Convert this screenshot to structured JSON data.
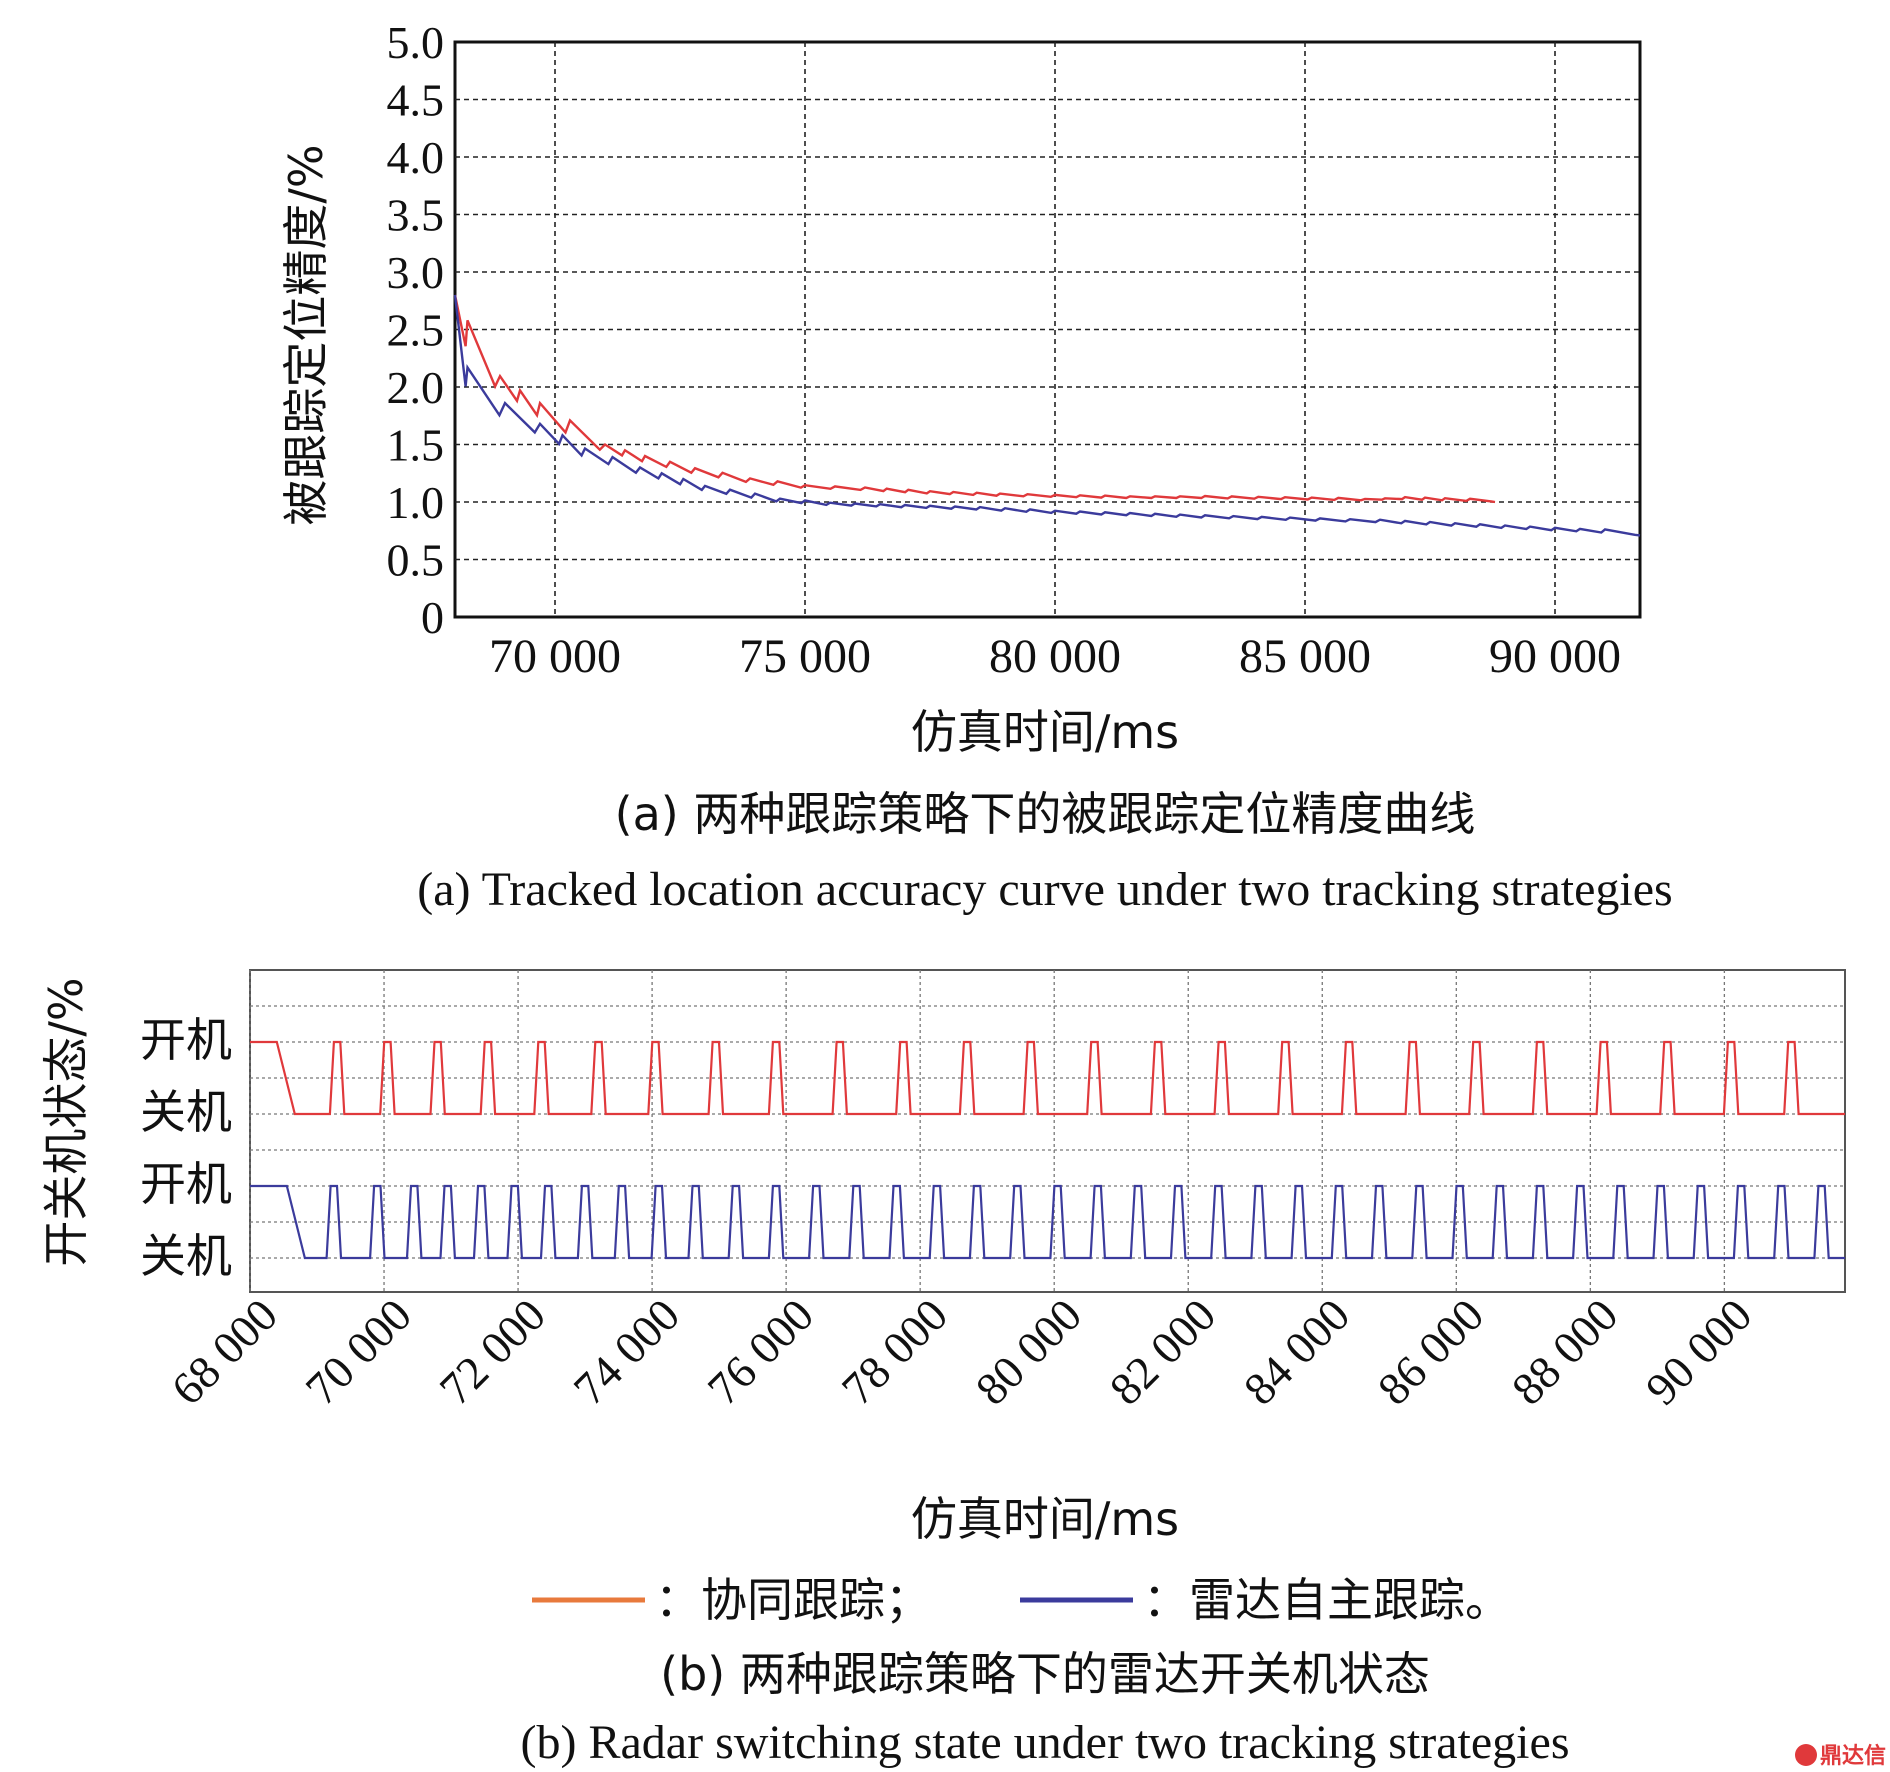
{
  "chart_data": [
    {
      "type": "line",
      "ylabel": "被跟踪定位精度/%",
      "xlabel": "仿真时间/ms",
      "ylim": [
        0,
        5.0
      ],
      "xlim": [
        68000,
        91700
      ],
      "yticks": [
        "0",
        "0.5",
        "1.0",
        "1.5",
        "2.0",
        "2.5",
        "3.0",
        "3.5",
        "4.0",
        "4.5",
        "5.0"
      ],
      "xticks": [
        {
          "value": 70000,
          "label": "70 000"
        },
        {
          "value": 75000,
          "label": "75 000"
        },
        {
          "value": 80000,
          "label": "80 000"
        },
        {
          "value": 85000,
          "label": "85 000"
        },
        {
          "value": 90000,
          "label": "90 000"
        }
      ],
      "grid": true,
      "caption_cn": "(a) 两种跟踪策略下的被跟踪定位精度曲线",
      "caption_en": "(a) Tracked location accuracy curve under two tracking strategies",
      "series": [
        {
          "name": "协同跟踪",
          "color": "#e0393b",
          "x": [
            68000,
            68250,
            68900,
            69700,
            70300,
            71000,
            71800,
            72800,
            73900,
            75000,
            76200,
            77500,
            78900,
            80000,
            81500,
            83000,
            84600,
            86200,
            87000,
            87800,
            88800
          ],
          "y": [
            2.8,
            2.35,
            2.0,
            1.75,
            1.6,
            1.45,
            1.35,
            1.25,
            1.17,
            1.12,
            1.1,
            1.07,
            1.05,
            1.04,
            1.03,
            1.03,
            1.02,
            1.01,
            1.02,
            1.01,
            1.0
          ]
        },
        {
          "name": "雷达自主跟踪",
          "color": "#3b3b9c",
          "x": [
            68000,
            68250,
            69000,
            69700,
            70600,
            71700,
            73000,
            74500,
            75500,
            77000,
            78500,
            80000,
            81500,
            83000,
            84700,
            86500,
            88000,
            89000,
            90000,
            91000,
            91700
          ],
          "y": [
            2.8,
            2.0,
            1.75,
            1.6,
            1.4,
            1.25,
            1.1,
            1.0,
            0.97,
            0.95,
            0.93,
            0.9,
            0.88,
            0.86,
            0.84,
            0.82,
            0.79,
            0.77,
            0.75,
            0.73,
            0.71
          ]
        }
      ]
    },
    {
      "type": "line",
      "ylabel": "开关机状态/%",
      "xlabel": "仿真时间/ms",
      "xlim": [
        68000,
        91800
      ],
      "xticks": [
        {
          "value": 68000,
          "label": "68 000"
        },
        {
          "value": 70000,
          "label": "70 000"
        },
        {
          "value": 72000,
          "label": "72 000"
        },
        {
          "value": 74000,
          "label": "74 000"
        },
        {
          "value": 76000,
          "label": "76 000"
        },
        {
          "value": 78000,
          "label": "78 000"
        },
        {
          "value": 80000,
          "label": "80 000"
        },
        {
          "value": 82000,
          "label": "82 000"
        },
        {
          "value": 84000,
          "label": "84 000"
        },
        {
          "value": 86000,
          "label": "86 000"
        },
        {
          "value": 88000,
          "label": "88 000"
        },
        {
          "value": 90000,
          "label": "90 000"
        }
      ],
      "ytick_labels": [
        "开机",
        "关机",
        "开机",
        "关机"
      ],
      "grid": true,
      "legend": [
        {
          "label": "：协同跟踪；",
          "color": "#e87a3c"
        },
        {
          "label": "：雷达自主跟踪。",
          "color": "#3b3b9c"
        }
      ],
      "caption_cn": "(b) 两种跟踪策略下的雷达开关机状态",
      "caption_en": "(b) Radar switching state under two tracking strategies",
      "series": [
        {
          "name": "协同跟踪",
          "color": "#e0393b",
          "initial_on_until": 68400,
          "on_pulses": [
            69300,
            70050,
            70800,
            71550,
            72350,
            73200,
            74050,
            74950,
            75850,
            76800,
            77750,
            78700,
            79650,
            80600,
            81550,
            82500,
            83450,
            84400,
            85350,
            86300,
            87250,
            88200,
            89150,
            90100,
            91000
          ]
        },
        {
          "name": "雷达自主跟踪",
          "color": "#3b3b9c",
          "initial_on_until": 68550,
          "on_pulses": [
            69250,
            69900,
            70450,
            70950,
            71450,
            71950,
            72450,
            73000,
            73550,
            74100,
            74650,
            75250,
            75850,
            76450,
            77050,
            77650,
            78250,
            78850,
            79450,
            80050,
            80650,
            81250,
            81850,
            82450,
            83050,
            83650,
            84250,
            84850,
            85450,
            86050,
            86650,
            87250,
            87850,
            88450,
            89050,
            89650,
            90250,
            90850,
            91450
          ]
        }
      ]
    }
  ],
  "watermark": "鼎达信"
}
